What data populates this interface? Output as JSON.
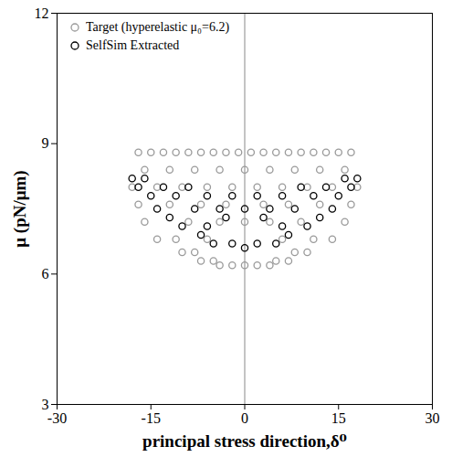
{
  "chart_data": {
    "type": "scatter",
    "xlabel": "principal stress direction,δ⁰",
    "ylabel": "μ (pN/μm)",
    "xlim": [
      -30,
      30
    ],
    "xticks": [
      -30,
      -15,
      0,
      15,
      30
    ],
    "ylim": [
      3,
      12
    ],
    "yticks": [
      3,
      6,
      9,
      12
    ],
    "grid": false,
    "legend": "top-left",
    "vlines": [
      0
    ],
    "series": [
      {
        "name": "Target (hyperelastic μ₀=6.2)",
        "color": "#9a9a9a",
        "marker": "circle",
        "x": [
          -17,
          -15,
          -13,
          -11,
          -9,
          -7,
          -5,
          -3,
          -1,
          1,
          3,
          5,
          7,
          9,
          11,
          13,
          15,
          17,
          -16,
          -12,
          -8,
          -4,
          0,
          4,
          8,
          12,
          16,
          -18,
          -14,
          -10,
          -6,
          -2,
          2,
          6,
          10,
          14,
          18,
          -17,
          -12,
          -7,
          -3,
          3,
          7,
          12,
          17,
          -16,
          -9,
          -4,
          0,
          4,
          9,
          16,
          -14,
          -11,
          -6,
          6,
          11,
          14,
          -10,
          -8,
          8,
          10,
          -7,
          -5,
          5,
          7,
          -4,
          -2,
          0,
          2,
          4
        ],
        "values": [
          8.8,
          8.8,
          8.8,
          8.8,
          8.8,
          8.8,
          8.8,
          8.8,
          8.8,
          8.8,
          8.8,
          8.8,
          8.8,
          8.8,
          8.8,
          8.8,
          8.8,
          8.8,
          8.4,
          8.4,
          8.4,
          8.4,
          8.4,
          8.4,
          8.4,
          8.4,
          8.4,
          8.0,
          8.0,
          8.0,
          8.0,
          8.0,
          8.0,
          8.0,
          8.0,
          8.0,
          8.0,
          7.6,
          7.6,
          7.6,
          7.6,
          7.6,
          7.6,
          7.6,
          7.6,
          7.2,
          7.2,
          7.2,
          7.2,
          7.2,
          7.2,
          7.2,
          6.8,
          6.8,
          6.8,
          6.8,
          6.8,
          6.8,
          6.5,
          6.5,
          6.5,
          6.5,
          6.3,
          6.3,
          6.3,
          6.3,
          6.2,
          6.2,
          6.2,
          6.2,
          6.2
        ]
      },
      {
        "name": "SelfSim Extracted",
        "color": "#000000",
        "marker": "circle",
        "x": [
          -18,
          -16,
          16,
          18,
          -17,
          -13,
          -9,
          9,
          13,
          17,
          -15,
          -11,
          -6,
          -2,
          2,
          6,
          11,
          15,
          -14,
          -8,
          -4,
          0,
          4,
          8,
          14,
          -12,
          -3,
          3,
          12,
          -10,
          -6,
          6,
          10,
          -7,
          7,
          -5,
          -2,
          2,
          5,
          0
        ],
        "values": [
          8.2,
          8.2,
          8.2,
          8.2,
          8.0,
          8.0,
          8.0,
          8.0,
          8.0,
          8.0,
          7.8,
          7.8,
          7.8,
          7.8,
          7.8,
          7.8,
          7.8,
          7.8,
          7.5,
          7.5,
          7.5,
          7.5,
          7.5,
          7.5,
          7.5,
          7.3,
          7.3,
          7.3,
          7.3,
          7.1,
          7.1,
          7.1,
          7.1,
          6.9,
          6.9,
          6.7,
          6.7,
          6.7,
          6.7,
          6.6
        ]
      }
    ]
  }
}
